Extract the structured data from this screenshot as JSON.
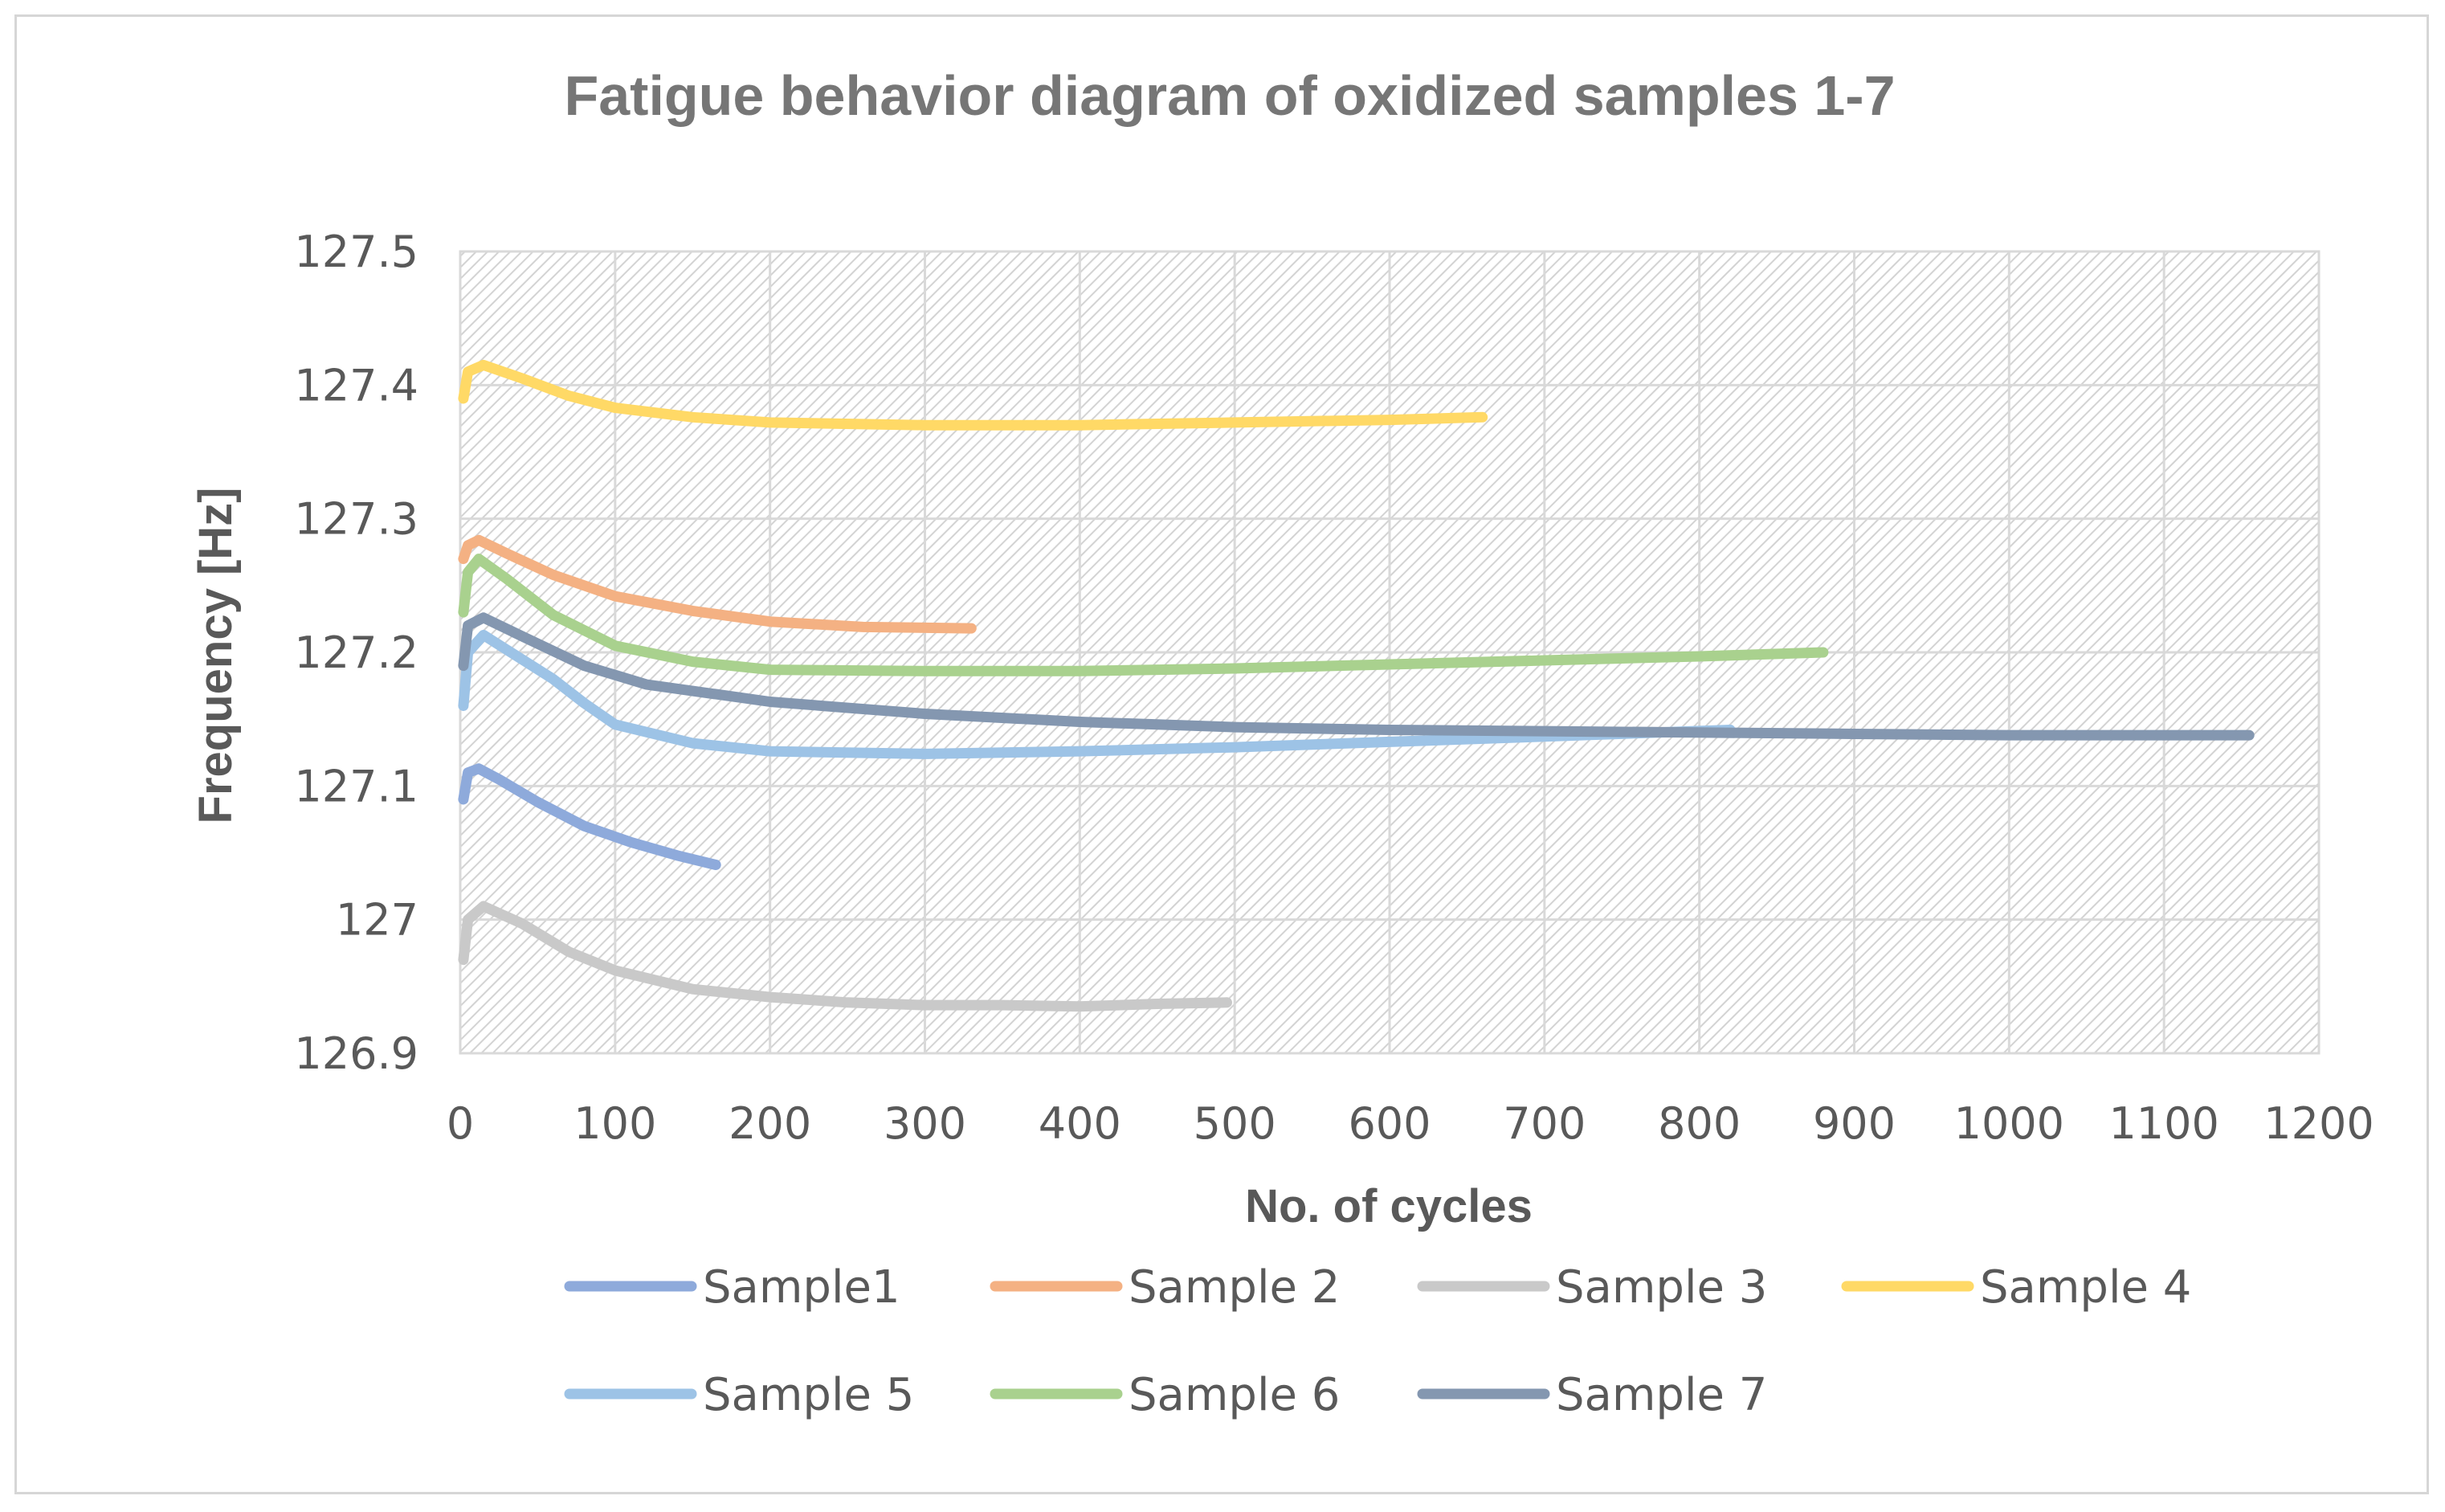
{
  "chart_data": {
    "type": "line",
    "title": "Fatigue behavior diagram of oxidized samples 1-7",
    "xlabel": "No. of cycles",
    "ylabel": "Frequency [Hz]",
    "xlim": [
      0,
      1200
    ],
    "ylim": [
      126.9,
      127.5
    ],
    "x_ticks": [
      0,
      100,
      200,
      300,
      400,
      500,
      600,
      700,
      800,
      900,
      1000,
      1100,
      1200
    ],
    "y_ticks": [
      126.9,
      127,
      127.1,
      127.2,
      127.3,
      127.4,
      127.5
    ],
    "y_tick_labels": [
      "126.9",
      "127",
      "127.1",
      "127.2",
      "127.3",
      "127.4",
      "127.5"
    ],
    "grid": true,
    "legend_position": "bottom",
    "series": [
      {
        "name": "Sample1",
        "color": "#8eaadb",
        "points": [
          [
            2,
            127.09
          ],
          [
            5,
            127.11
          ],
          [
            12,
            127.113
          ],
          [
            25,
            127.105
          ],
          [
            50,
            127.088
          ],
          [
            80,
            127.07
          ],
          [
            110,
            127.058
          ],
          [
            140,
            127.048
          ],
          [
            165,
            127.041
          ]
        ]
      },
      {
        "name": "Sample 2",
        "color": "#f4b183",
        "points": [
          [
            2,
            127.27
          ],
          [
            5,
            127.28
          ],
          [
            12,
            127.284
          ],
          [
            30,
            127.274
          ],
          [
            60,
            127.258
          ],
          [
            100,
            127.242
          ],
          [
            150,
            127.231
          ],
          [
            200,
            127.223
          ],
          [
            260,
            127.219
          ],
          [
            330,
            127.218
          ]
        ]
      },
      {
        "name": "Sample 3",
        "color": "#c9c9c9",
        "points": [
          [
            2,
            126.97
          ],
          [
            5,
            127.0
          ],
          [
            15,
            127.01
          ],
          [
            40,
            126.997
          ],
          [
            70,
            126.976
          ],
          [
            100,
            126.962
          ],
          [
            150,
            126.948
          ],
          [
            200,
            126.942
          ],
          [
            250,
            126.938
          ],
          [
            300,
            126.936
          ],
          [
            350,
            126.936
          ],
          [
            400,
            126.935
          ],
          [
            450,
            126.937
          ],
          [
            495,
            126.938
          ]
        ]
      },
      {
        "name": "Sample 4",
        "color": "#ffd966",
        "points": [
          [
            2,
            127.39
          ],
          [
            5,
            127.41
          ],
          [
            15,
            127.415
          ],
          [
            40,
            127.405
          ],
          [
            70,
            127.392
          ],
          [
            100,
            127.383
          ],
          [
            150,
            127.376
          ],
          [
            200,
            127.372
          ],
          [
            300,
            127.37
          ],
          [
            400,
            127.37
          ],
          [
            500,
            127.372
          ],
          [
            600,
            127.374
          ],
          [
            660,
            127.376
          ]
        ]
      },
      {
        "name": "Sample 5",
        "color": "#9dc3e6",
        "points": [
          [
            2,
            127.16
          ],
          [
            5,
            127.2
          ],
          [
            15,
            127.213
          ],
          [
            30,
            127.202
          ],
          [
            60,
            127.18
          ],
          [
            80,
            127.162
          ],
          [
            100,
            127.146
          ],
          [
            150,
            127.132
          ],
          [
            200,
            127.126
          ],
          [
            300,
            127.124
          ],
          [
            400,
            127.126
          ],
          [
            500,
            127.129
          ],
          [
            600,
            127.133
          ],
          [
            700,
            127.137
          ],
          [
            820,
            127.142
          ]
        ]
      },
      {
        "name": "Sample 6",
        "color": "#a9d18e",
        "points": [
          [
            2,
            127.23
          ],
          [
            5,
            127.26
          ],
          [
            12,
            127.27
          ],
          [
            30,
            127.255
          ],
          [
            60,
            127.228
          ],
          [
            100,
            127.205
          ],
          [
            150,
            127.193
          ],
          [
            200,
            127.187
          ],
          [
            300,
            127.186
          ],
          [
            400,
            127.186
          ],
          [
            500,
            127.188
          ],
          [
            600,
            127.191
          ],
          [
            700,
            127.194
          ],
          [
            800,
            127.197
          ],
          [
            880,
            127.2
          ]
        ]
      },
      {
        "name": "Sample 7",
        "color": "#8497b0",
        "points": [
          [
            2,
            127.19
          ],
          [
            5,
            127.22
          ],
          [
            15,
            127.226
          ],
          [
            40,
            127.212
          ],
          [
            80,
            127.19
          ],
          [
            120,
            127.176
          ],
          [
            200,
            127.163
          ],
          [
            300,
            127.154
          ],
          [
            400,
            127.148
          ],
          [
            500,
            127.144
          ],
          [
            600,
            127.142
          ],
          [
            700,
            127.141
          ],
          [
            800,
            127.14
          ],
          [
            900,
            127.139
          ],
          [
            1000,
            127.138
          ],
          [
            1100,
            127.138
          ],
          [
            1155,
            127.138
          ]
        ]
      }
    ]
  }
}
